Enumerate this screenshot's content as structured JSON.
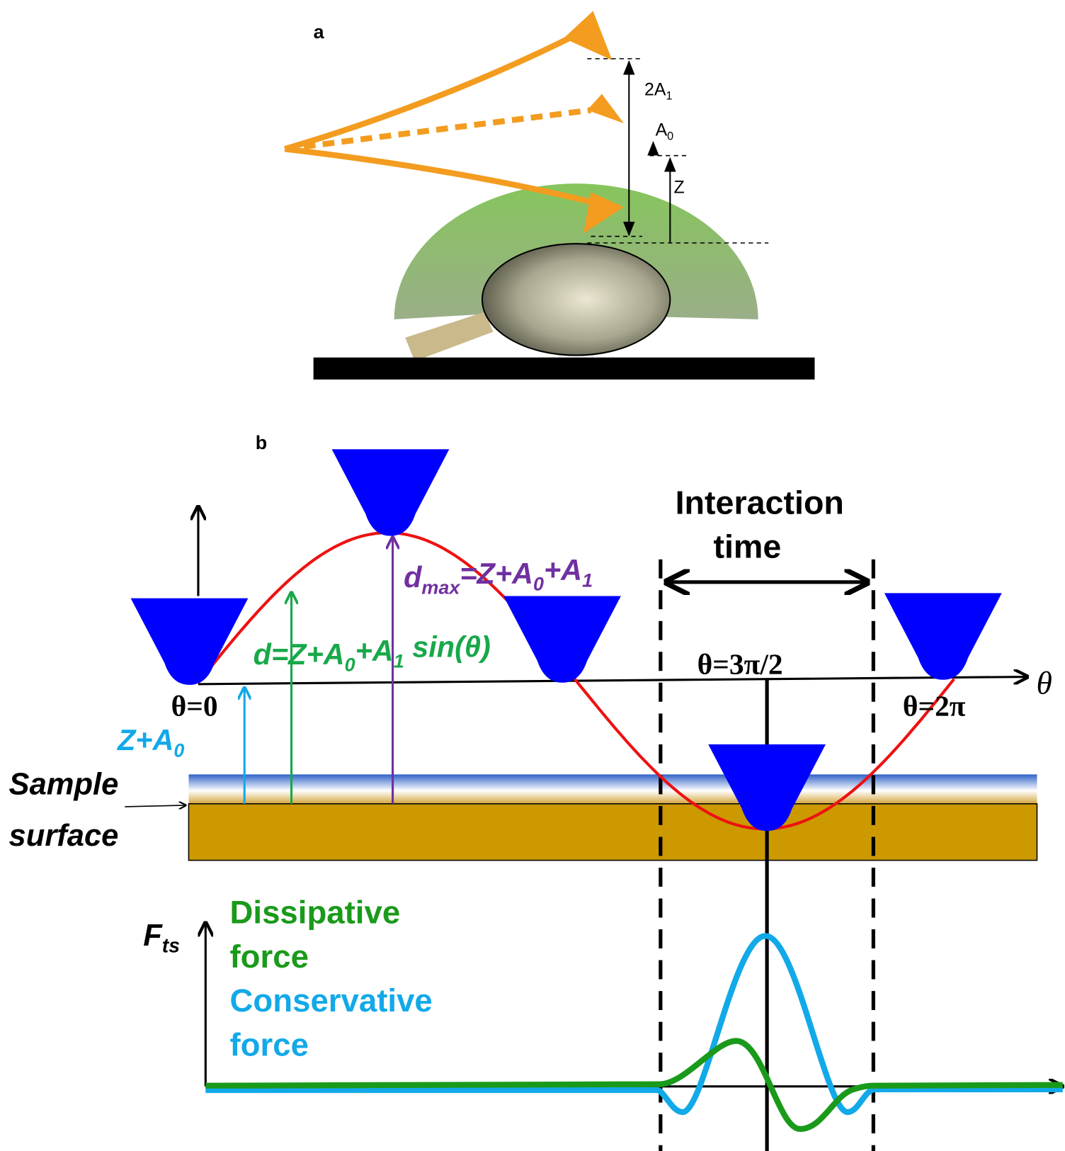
{
  "panel_a": {
    "label": "a",
    "two_a1": [
      "2A",
      "1"
    ],
    "a0": [
      "A",
      "0"
    ],
    "z": "Z"
  },
  "panel_b": {
    "label": "b",
    "interaction_time": [
      "Interaction",
      "time"
    ],
    "d_max": [
      "d",
      "max",
      "=Z+A",
      "0",
      "+A",
      "1"
    ],
    "d": [
      "d=Z+A",
      "0",
      "+A",
      "1",
      " sin(θ)"
    ],
    "theta0": "θ=0",
    "theta3pi2": "θ=3π/2",
    "theta2pi": "θ=2π",
    "theta_axis": "θ",
    "z_a0": [
      "Z+A",
      "0"
    ],
    "sample_surface": [
      "Sample",
      "surface"
    ],
    "f_ts": [
      "F",
      "ts"
    ],
    "dissipative": [
      "Dissipative",
      "force"
    ],
    "conservative": [
      "Conservative",
      "force"
    ]
  }
}
